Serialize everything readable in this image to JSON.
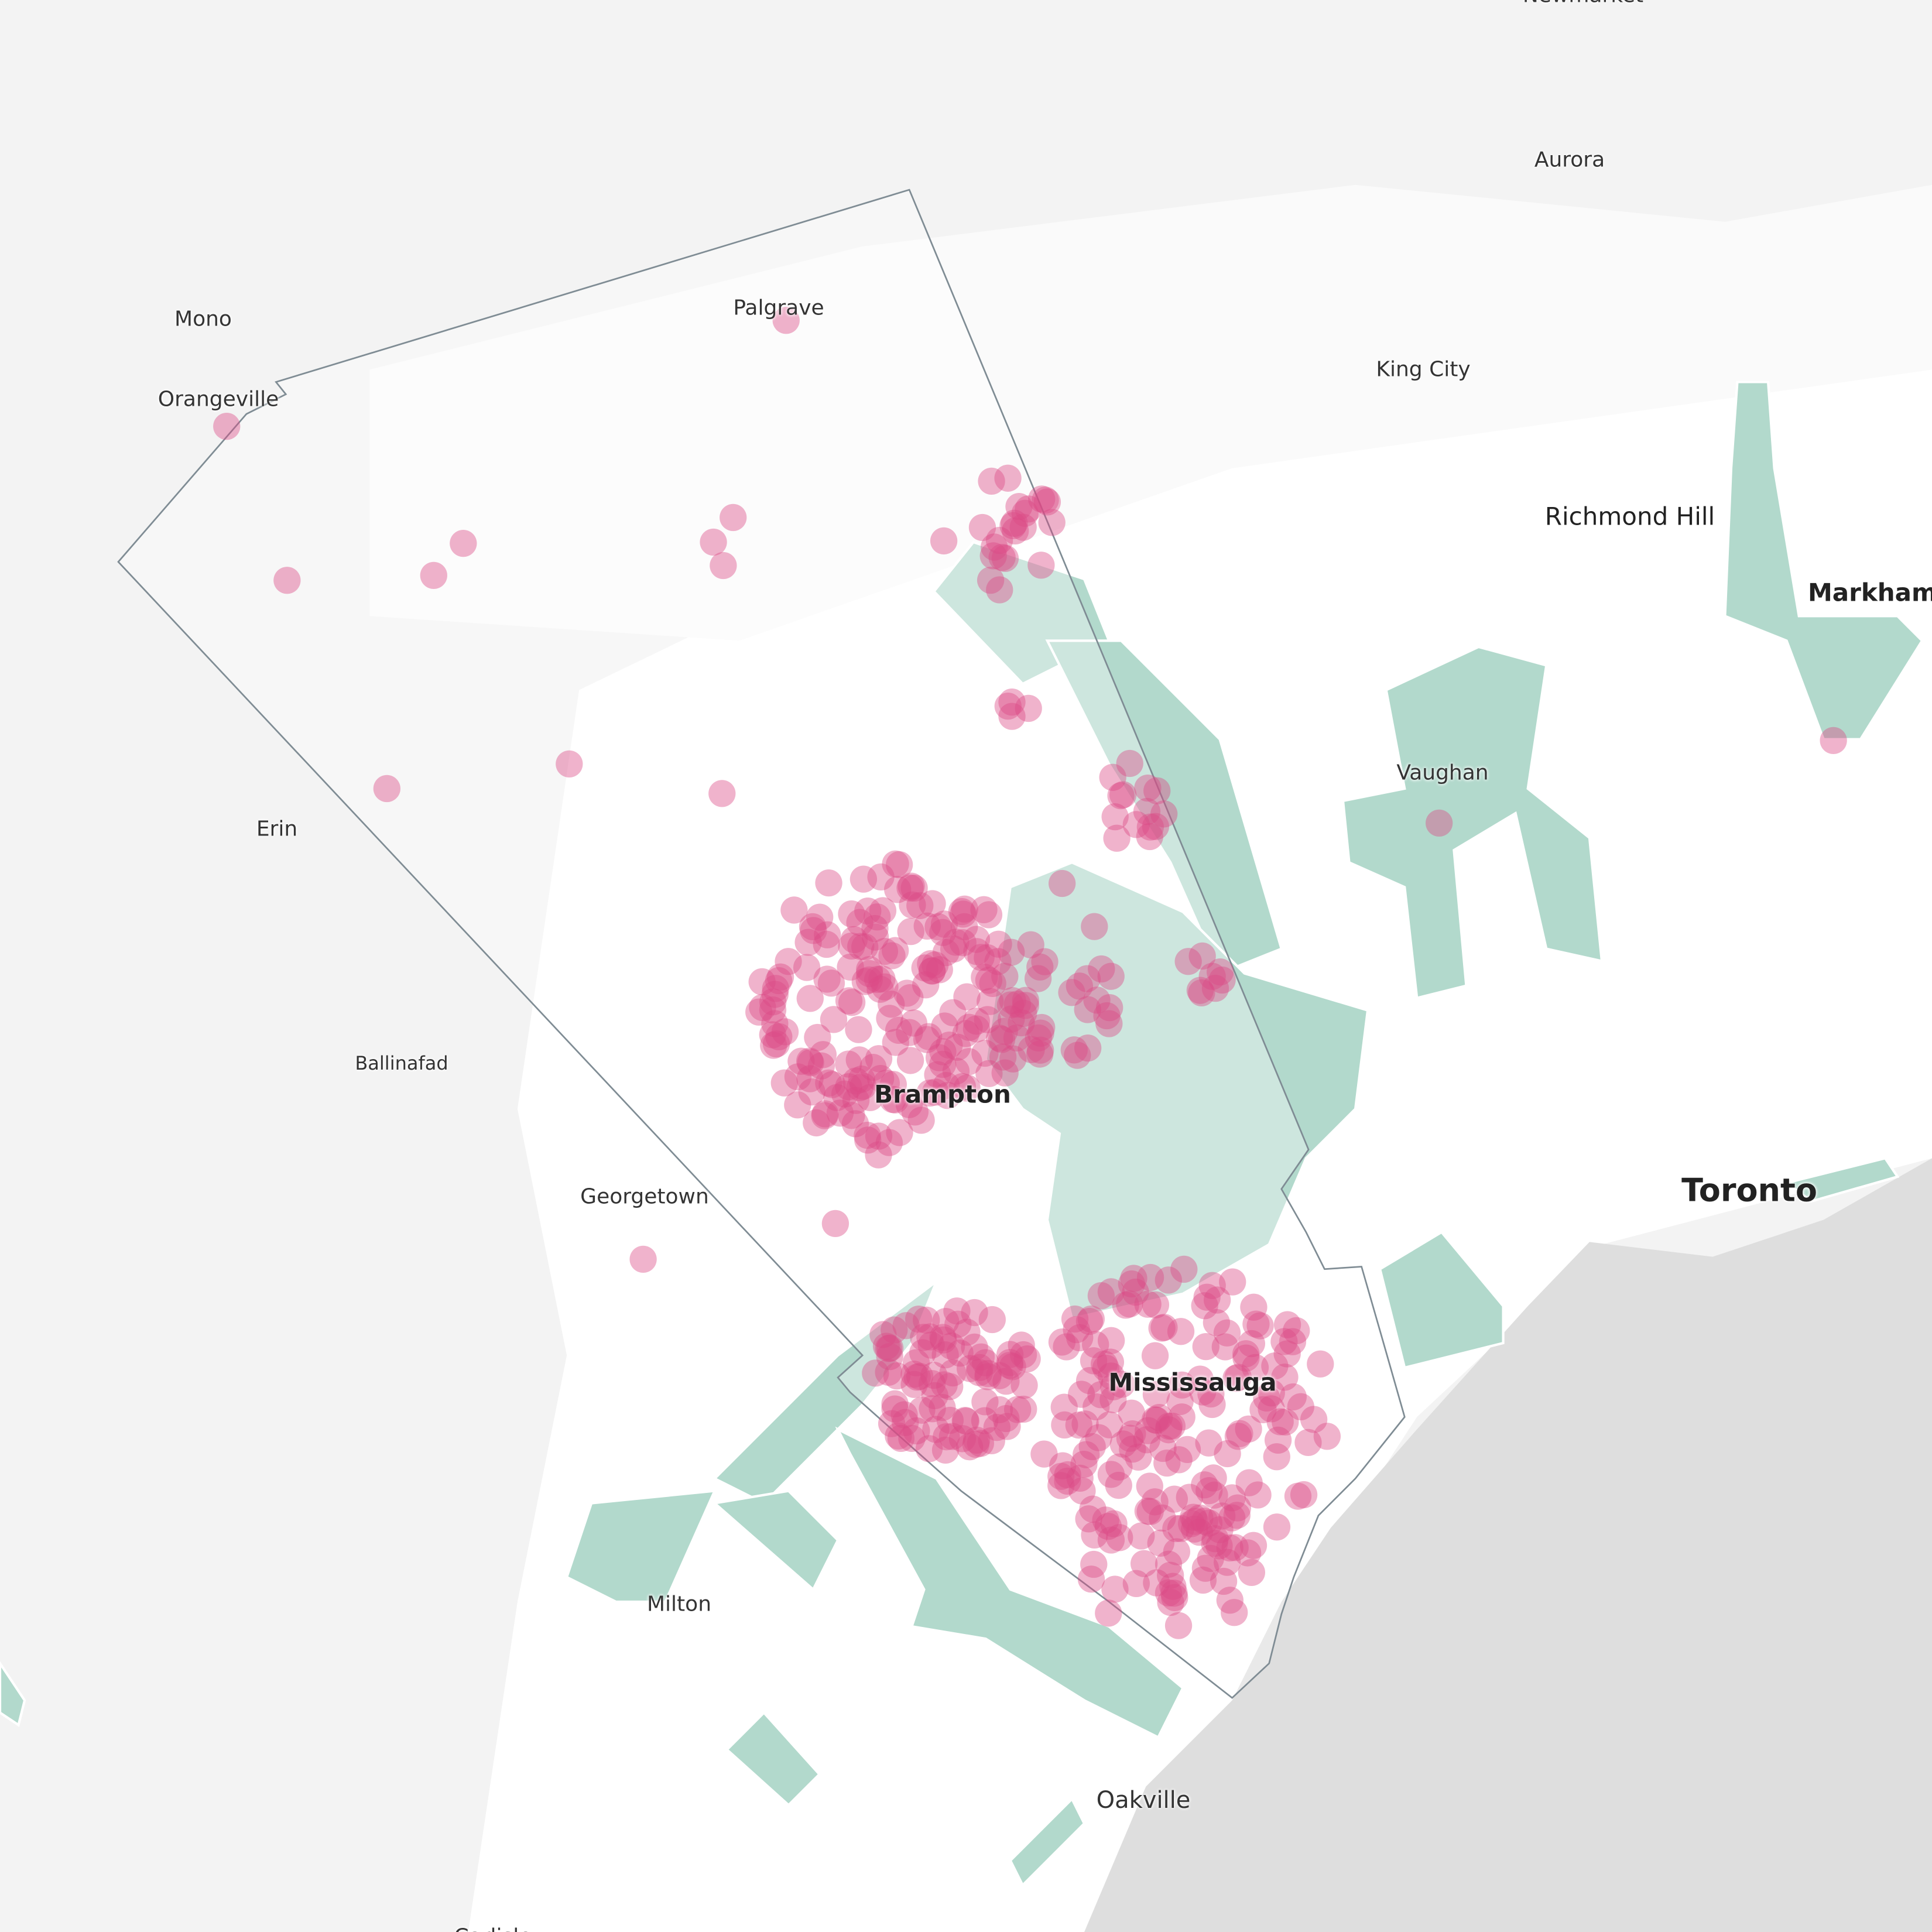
{
  "map": {
    "colors": {
      "background": "#f4f4f4",
      "land_open": "#ffffff",
      "water": "#dedede",
      "urban_zone": "#b2d9cc",
      "boundary": "#7f8c94",
      "points": "#dc4a86"
    },
    "labels": {
      "newmarket": "Newmarket",
      "aurora": "Aurora",
      "mono": "Mono",
      "palgrave": "Palgrave",
      "king_city": "King City",
      "orangeville": "Orangeville",
      "richmond_hill": "Richmond Hill",
      "markham": "Markham",
      "vaughan": "Vaughan",
      "erin": "Erin",
      "ballinafad": "Ballinafad",
      "brampton": "Brampton",
      "toronto": "Toronto",
      "georgetown": "Georgetown",
      "mississauga": "Mississauga",
      "milton": "Milton",
      "oakville": "Oakville",
      "carlisle": "Carlisle"
    }
  }
}
